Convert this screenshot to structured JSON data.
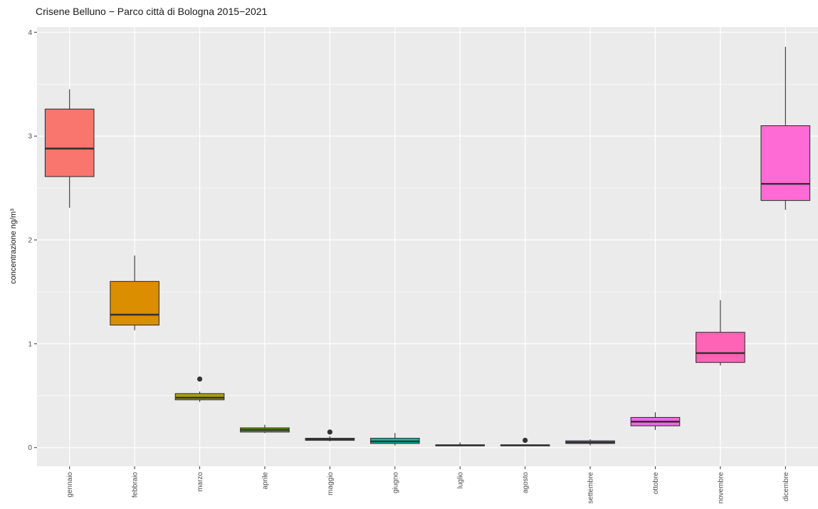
{
  "chart_data": {
    "type": "box",
    "title": "Crisene Belluno − Parco città di Bologna 2015−2021",
    "xlabel": "",
    "ylabel": "concentrazione ng/m³",
    "ylim": [
      -0.18,
      4.05
    ],
    "yticks": [
      0,
      1,
      2,
      3,
      4
    ],
    "grid": true,
    "legend": "none",
    "categories": [
      "gennaio",
      "febbraio",
      "marzo",
      "aprile",
      "maggio",
      "giugno",
      "luglio",
      "agosto",
      "settembre",
      "ottobre",
      "novembre",
      "dicembre"
    ],
    "boxes": [
      {
        "min": 2.31,
        "q1": 2.61,
        "median": 2.88,
        "q3": 3.26,
        "max": 3.45,
        "outliers": []
      },
      {
        "min": 1.13,
        "q1": 1.18,
        "median": 1.28,
        "q3": 1.6,
        "max": 1.85,
        "outliers": []
      },
      {
        "min": 0.44,
        "q1": 0.46,
        "median": 0.48,
        "q3": 0.52,
        "max": 0.54,
        "outliers": [
          0.66
        ]
      },
      {
        "min": 0.14,
        "q1": 0.15,
        "median": 0.17,
        "q3": 0.19,
        "max": 0.22,
        "outliers": []
      },
      {
        "min": 0.06,
        "q1": 0.07,
        "median": 0.08,
        "q3": 0.09,
        "max": 0.11,
        "outliers": [
          0.15
        ]
      },
      {
        "min": 0.02,
        "q1": 0.04,
        "median": 0.06,
        "q3": 0.09,
        "max": 0.14,
        "outliers": []
      },
      {
        "min": 0.015,
        "q1": 0.018,
        "median": 0.022,
        "q3": 0.026,
        "max": 0.05,
        "outliers": []
      },
      {
        "min": 0.015,
        "q1": 0.018,
        "median": 0.022,
        "q3": 0.026,
        "max": 0.03,
        "outliers": [
          0.07
        ]
      },
      {
        "min": 0.02,
        "q1": 0.04,
        "median": 0.05,
        "q3": 0.065,
        "max": 0.08,
        "outliers": []
      },
      {
        "min": 0.17,
        "q1": 0.21,
        "median": 0.25,
        "q3": 0.29,
        "max": 0.34,
        "outliers": []
      },
      {
        "min": 0.79,
        "q1": 0.82,
        "median": 0.91,
        "q3": 1.11,
        "max": 1.42,
        "outliers": []
      },
      {
        "min": 2.29,
        "q1": 2.38,
        "median": 2.54,
        "q3": 3.1,
        "max": 3.86,
        "outliers": []
      }
    ],
    "colors": [
      "#F8766D",
      "#DB8E00",
      "#AEA200",
      "#64B200",
      "#00BD5C",
      "#00C1A7",
      "#00BADE",
      "#00A6FF",
      "#B385FF",
      "#EF67EB",
      "#FF63B6",
      "#FF6BD5"
    ]
  }
}
